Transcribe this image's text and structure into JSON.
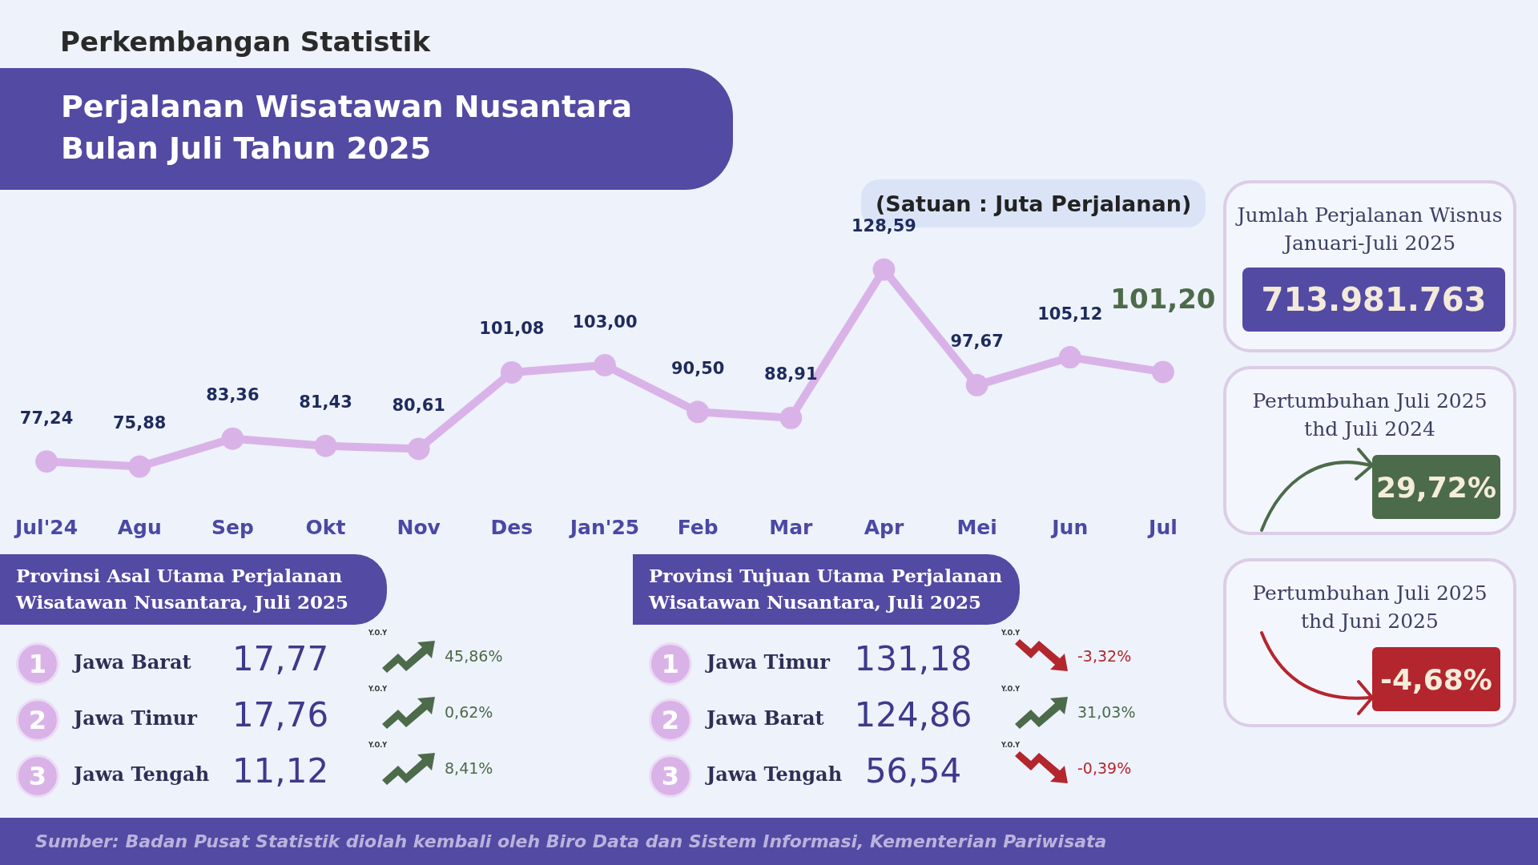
{
  "chart_data": [
    {
      "type": "line",
      "subtitle": "Perkembangan Statistik",
      "title": "Perjalanan Wisatawan Nusantara Bulan Juli Tahun 2025",
      "annotations": [
        "(Satuan : Juta Perjalanan)",
        "Sumber:  Badan Pusat Statistik diolah kembali oleh Biro Data dan Sistem Informasi, Kementerian Pariwisata"
      ],
      "categories": [
        "Jul'24",
        "Agu",
        "Sep",
        "Okt",
        "Nov",
        "Des",
        "Jan'25",
        "Feb",
        "Mar",
        "Apr",
        "Mei",
        "Jun",
        "Jul"
      ],
      "values": [
        77.24,
        75.88,
        83.36,
        81.43,
        80.61,
        101.08,
        103.0,
        90.5,
        88.91,
        128.59,
        97.67,
        105.12,
        101.2
      ],
      "value_labels": [
        "77,24",
        "75,88",
        "83,36",
        "81,43",
        "80,61",
        "101,08",
        "103,00",
        "90,50",
        "88,91",
        "128,59",
        "97,67",
        "105,12",
        "101,20"
      ],
      "color": "#d9b3e8",
      "marker": "circle",
      "tick_labels": "x"
    },
    {
      "type": "other",
      "title": "Jumlah Perjalanan Wisnus Januari-Juli 2025",
      "annotations": [
        "713.981.763"
      ]
    },
    {
      "type": "other",
      "title": "Pertumbuhan Juli 2025 thd Juli 2024",
      "annotations": [
        "29,72%"
      ]
    },
    {
      "type": "other",
      "title": "Pertumbuhan Juli 2025 thd Juni 2025",
      "annotations": [
        "-4,68%"
      ]
    },
    {
      "type": "other",
      "title": "Provinsi Asal Utama Perjalanan Wisatawan Nusantara, Juli 2025",
      "annotations": [
        "1",
        "Jawa Barat",
        "17,77",
        "Y.O.Y",
        "45,86%",
        "2",
        "Jawa Timur",
        "17,76",
        "Y.O.Y",
        "0,62%",
        "3",
        "Jawa Tengah",
        "11,12",
        "Y.O.Y",
        "8,41%"
      ]
    },
    {
      "type": "other",
      "title": "Provinsi Tujuan Utama Perjalanan Wisatawan Nusantara,  Juli 2025",
      "annotations": [
        "1",
        "Jawa Timur",
        "131,18",
        "Y.O.Y",
        "-3,32%",
        "2",
        "Jawa Barat",
        "124,86",
        "Y.O.Y",
        "31,03%",
        "3",
        "Jawa Tengah",
        "56,54",
        "Y.O.Y",
        "-0,39%"
      ]
    }
  ]
}
